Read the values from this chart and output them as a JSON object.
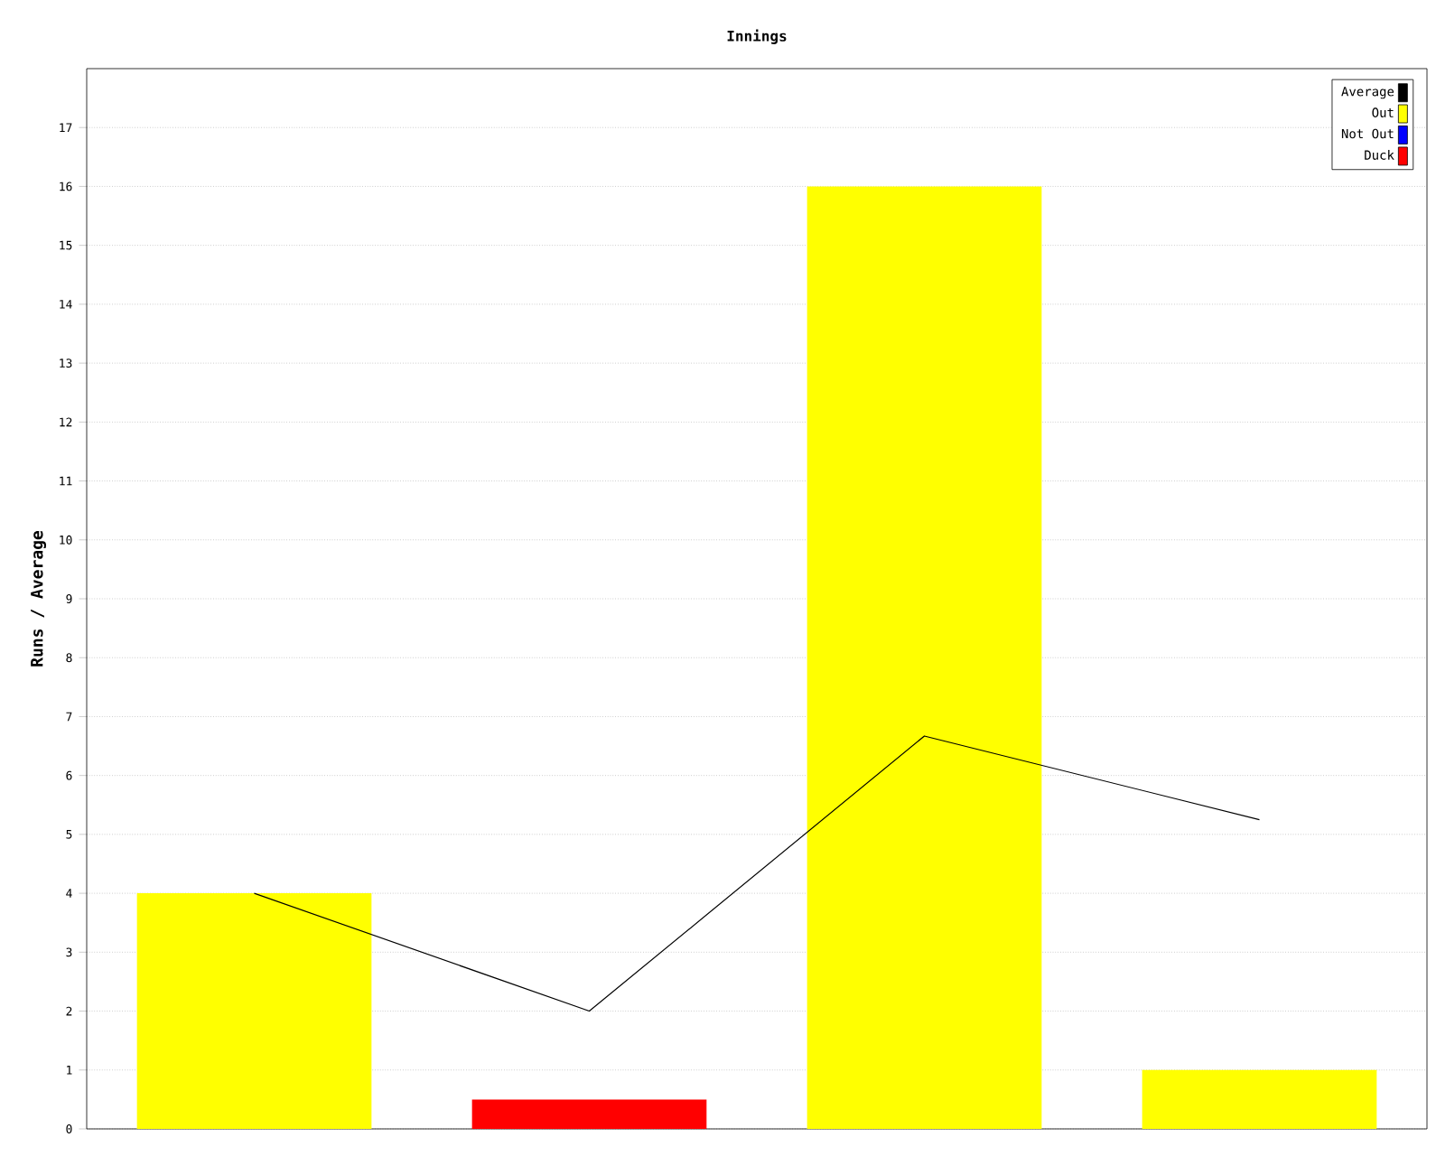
{
  "chart_data": {
    "type": "bar",
    "title": "Innings",
    "ylabel": "Runs / Average",
    "categories": [
      null,
      null,
      null,
      null
    ],
    "series": [
      {
        "name": "Average",
        "type": "line",
        "color": "#000000",
        "values": [
          4,
          2,
          6.67,
          5.25
        ]
      },
      {
        "name": "Out",
        "color": "#ffff00",
        "values": [
          4,
          null,
          16,
          1
        ]
      },
      {
        "name": "Not Out",
        "color": "#0000ff",
        "values": [
          null,
          null,
          null,
          null
        ]
      },
      {
        "name": "Duck",
        "color": "#ff0000",
        "values": [
          null,
          0.5,
          null,
          null
        ]
      }
    ],
    "ylim": [
      0,
      18
    ],
    "yticks": [
      0,
      1,
      2,
      3,
      4,
      5,
      6,
      7,
      8,
      9,
      10,
      11,
      12,
      13,
      14,
      15,
      16,
      17
    ],
    "grid": "y",
    "legend": "top right",
    "marker": "none",
    "tick_labels": "y"
  }
}
